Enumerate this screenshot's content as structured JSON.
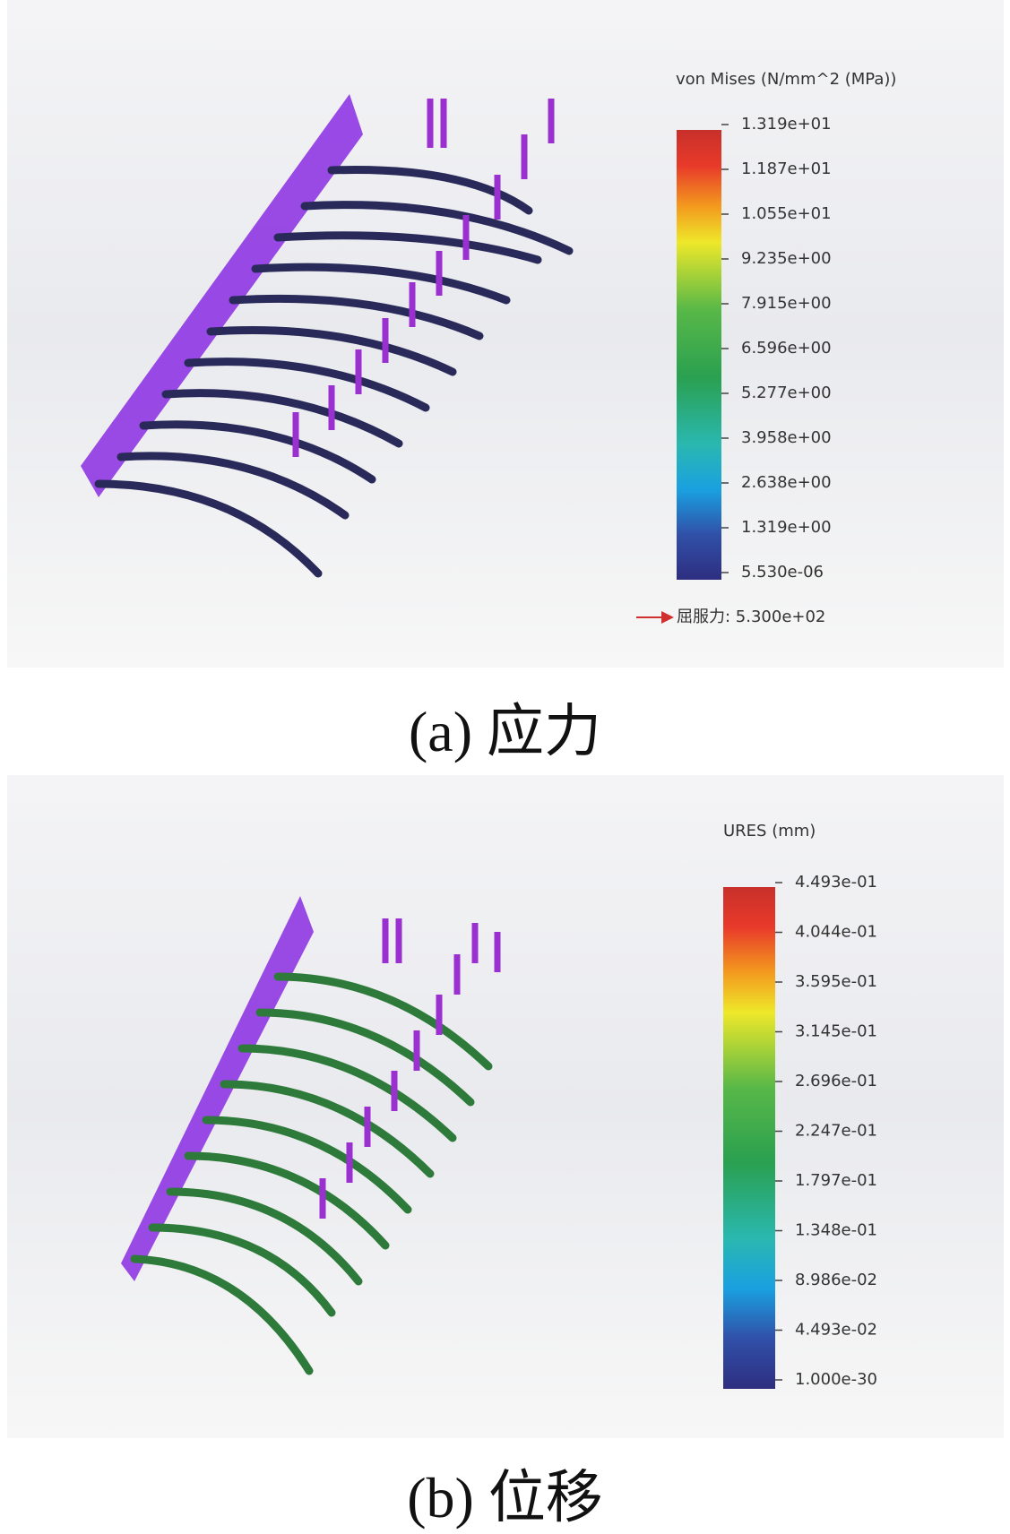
{
  "panels": [
    {
      "legend_title": "von Mises (N/mm^2 (MPa))",
      "ticks": [
        "1.319e+01",
        "1.187e+01",
        "1.055e+01",
        "9.235e+00",
        "7.915e+00",
        "6.596e+00",
        "5.277e+00",
        "3.958e+00",
        "2.638e+00",
        "1.319e+00",
        "5.530e-06"
      ],
      "note": "屈服力: 5.300e+02",
      "caption": "(a)  应力"
    },
    {
      "legend_title": "URES (mm)",
      "ticks": [
        "4.493e-01",
        "4.044e-01",
        "3.595e-01",
        "3.145e-01",
        "2.696e-01",
        "2.247e-01",
        "1.797e-01",
        "1.348e-01",
        "8.986e-02",
        "4.493e-02",
        "1.000e-30"
      ],
      "caption": "(b)  位移"
    }
  ]
}
